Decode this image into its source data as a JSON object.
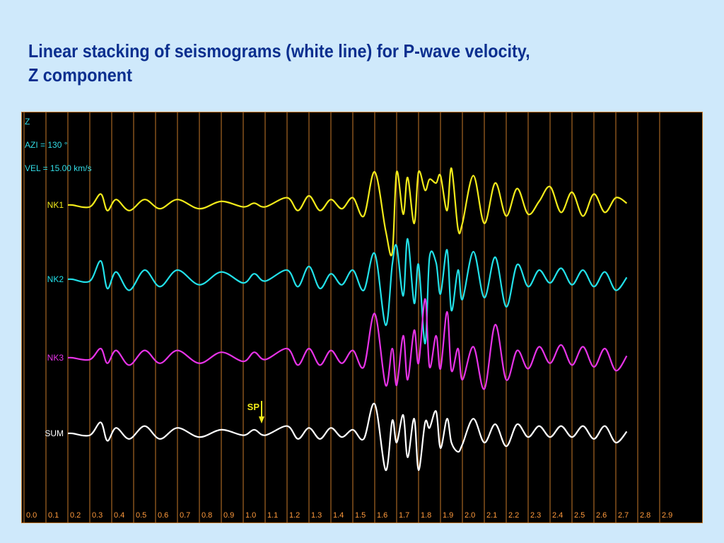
{
  "title": {
    "line1": "Linear stacking of seismograms (white line) for P-wave velocity,",
    "line2": "Z component"
  },
  "colors": {
    "background": "#cfe9fb",
    "title": "#0b2f8f",
    "plot_background": "#000000",
    "gridline": "#c87a2a",
    "info_text": "#33dde6",
    "NK1": "#f2ea1a",
    "NK2": "#22e0e8",
    "NK3": "#e633e6",
    "SUM": "#ffffff",
    "marker": "#f2ea1a",
    "tick_label": "#ff9a3c"
  },
  "chart_data": {
    "type": "line",
    "info": [
      "Z",
      "AZI = 130 °",
      "VEL = 15.00 km/s"
    ],
    "x_ticks": [
      "0.0",
      "0.1",
      "0.2",
      "0.3",
      "0.4",
      "0.5",
      "0.6",
      "0.7",
      "0.8",
      "0.9",
      "1.0",
      "1.1",
      "1.2",
      "1.3",
      "1.4",
      "1.5",
      "1.6",
      "1.7",
      "1.8",
      "1.9",
      "2.0",
      "2.1",
      "2.2",
      "2.3",
      "2.4",
      "2.5",
      "2.6",
      "2.7",
      "2.8",
      "2.9"
    ],
    "xlim": [
      0.0,
      3.0
    ],
    "grid": true,
    "annotation": {
      "text": "SP",
      "x": 1.1
    },
    "series": [
      {
        "name": "NK1",
        "color": "#f2ea1a",
        "x": [
          0.22,
          0.3,
          0.35,
          0.38,
          0.42,
          0.48,
          0.55,
          0.62,
          0.7,
          0.8,
          0.9,
          1.0,
          1.05,
          1.1,
          1.2,
          1.25,
          1.3,
          1.35,
          1.4,
          1.45,
          1.5,
          1.55,
          1.6,
          1.65,
          1.68,
          1.7,
          1.73,
          1.75,
          1.78,
          1.8,
          1.83,
          1.85,
          1.88,
          1.9,
          1.93,
          1.95,
          1.98,
          2.0,
          2.05,
          2.1,
          2.15,
          2.2,
          2.25,
          2.3,
          2.35,
          2.4,
          2.45,
          2.5,
          2.55,
          2.6,
          2.65,
          2.7,
          2.75
        ],
        "y": [
          0,
          -0.1,
          0.6,
          -0.3,
          0.3,
          -0.3,
          0.3,
          -0.2,
          0.3,
          -0.2,
          0.2,
          -0.1,
          0.1,
          -0.1,
          0.4,
          -0.3,
          0.5,
          -0.3,
          0.3,
          -0.2,
          0.4,
          -0.6,
          1.8,
          -1.4,
          -2.6,
          1.8,
          -0.5,
          1.5,
          -1.0,
          1.8,
          0.8,
          1.4,
          1.2,
          1.6,
          -0.3,
          2.0,
          -1.3,
          -1.0,
          1.6,
          -1.0,
          1.2,
          -0.6,
          0.9,
          -0.5,
          0.2,
          1.0,
          -0.4,
          0.7,
          -0.6,
          0.6,
          -0.4,
          0.4,
          0.1
        ]
      },
      {
        "name": "NK2",
        "color": "#22e0e8",
        "x": [
          0.22,
          0.3,
          0.35,
          0.38,
          0.42,
          0.48,
          0.55,
          0.62,
          0.7,
          0.8,
          0.9,
          1.0,
          1.05,
          1.1,
          1.2,
          1.25,
          1.3,
          1.35,
          1.4,
          1.45,
          1.5,
          1.55,
          1.6,
          1.65,
          1.68,
          1.7,
          1.73,
          1.75,
          1.78,
          1.8,
          1.83,
          1.85,
          1.88,
          1.9,
          1.93,
          1.95,
          1.98,
          2.0,
          2.05,
          2.1,
          2.15,
          2.2,
          2.25,
          2.3,
          2.35,
          2.4,
          2.45,
          2.5,
          2.55,
          2.6,
          2.65,
          2.7,
          2.75
        ],
        "y": [
          0,
          -0.1,
          1.0,
          -0.5,
          0.4,
          -0.6,
          0.5,
          -0.4,
          0.5,
          -0.3,
          0.4,
          -0.2,
          0.3,
          -0.1,
          0.5,
          -0.4,
          0.7,
          -0.5,
          0.3,
          -0.3,
          0.5,
          -0.6,
          1.4,
          -2.5,
          0.8,
          1.8,
          -0.9,
          2.2,
          -1.3,
          0.8,
          -3.5,
          1.2,
          0.9,
          -0.8,
          1.6,
          -1.7,
          0.5,
          -1.1,
          1.5,
          -1.0,
          1.2,
          -1.5,
          0.8,
          -0.4,
          0.5,
          -0.2,
          0.6,
          -0.3,
          0.5,
          -0.4,
          0.4,
          -0.6,
          0.1
        ]
      },
      {
        "name": "NK3",
        "color": "#e633e6",
        "x": [
          0.22,
          0.3,
          0.35,
          0.38,
          0.42,
          0.48,
          0.55,
          0.62,
          0.7,
          0.8,
          0.9,
          1.0,
          1.05,
          1.1,
          1.2,
          1.25,
          1.3,
          1.35,
          1.4,
          1.45,
          1.5,
          1.55,
          1.6,
          1.65,
          1.68,
          1.7,
          1.73,
          1.75,
          1.78,
          1.8,
          1.83,
          1.85,
          1.88,
          1.9,
          1.93,
          1.95,
          1.98,
          2.0,
          2.05,
          2.1,
          2.15,
          2.2,
          2.25,
          2.3,
          2.35,
          2.4,
          2.45,
          2.5,
          2.55,
          2.6,
          2.65,
          2.7,
          2.75
        ],
        "y": [
          0,
          -0.1,
          0.5,
          -0.3,
          0.4,
          -0.4,
          0.4,
          -0.3,
          0.4,
          -0.3,
          0.3,
          -0.2,
          0.3,
          -0.1,
          0.5,
          -0.4,
          0.5,
          -0.4,
          0.4,
          -0.3,
          0.4,
          -0.5,
          2.4,
          -1.5,
          0.5,
          -1.5,
          1.2,
          -1.2,
          1.5,
          -0.3,
          3.2,
          -0.5,
          1.2,
          -0.6,
          2.5,
          -0.7,
          0.5,
          -1.2,
          0.6,
          -1.7,
          1.8,
          -1.2,
          0.4,
          -0.6,
          0.6,
          -0.3,
          0.7,
          -0.4,
          0.6,
          -0.5,
          0.5,
          -0.7,
          0.1
        ]
      },
      {
        "name": "SUM",
        "color": "#ffffff",
        "x": [
          0.22,
          0.3,
          0.35,
          0.38,
          0.42,
          0.48,
          0.55,
          0.62,
          0.7,
          0.8,
          0.9,
          1.0,
          1.05,
          1.1,
          1.2,
          1.25,
          1.3,
          1.35,
          1.4,
          1.45,
          1.5,
          1.55,
          1.6,
          1.65,
          1.68,
          1.7,
          1.73,
          1.75,
          1.78,
          1.8,
          1.83,
          1.85,
          1.88,
          1.9,
          1.93,
          1.95,
          1.98,
          2.0,
          2.05,
          2.1,
          2.15,
          2.2,
          2.25,
          2.3,
          2.35,
          2.4,
          2.45,
          2.5,
          2.55,
          2.6,
          2.65,
          2.7,
          2.75
        ],
        "y": [
          0,
          -0.1,
          0.6,
          -0.4,
          0.3,
          -0.3,
          0.4,
          -0.3,
          0.3,
          -0.2,
          0.2,
          -0.1,
          0.2,
          -0.1,
          0.4,
          -0.3,
          0.3,
          -0.3,
          0.3,
          -0.2,
          0.2,
          -0.3,
          1.6,
          -2.0,
          0.7,
          -0.5,
          1.0,
          -1.3,
          0.8,
          -2.0,
          0.6,
          0.3,
          1.2,
          -0.8,
          0.8,
          -0.5,
          -1.0,
          -0.6,
          0.8,
          -0.5,
          0.5,
          -0.7,
          0.5,
          -0.2,
          0.4,
          -0.2,
          0.4,
          -0.2,
          0.4,
          -0.3,
          0.4,
          -0.5,
          0.1
        ]
      }
    ]
  }
}
